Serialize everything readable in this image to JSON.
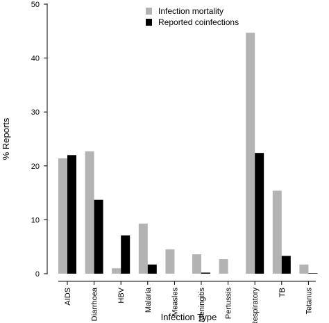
{
  "chart_data": {
    "type": "bar",
    "title": "",
    "xlabel": "Infection Type",
    "ylabel": "% Reports",
    "ylim": [
      0,
      50
    ],
    "yticks": [
      0,
      10,
      20,
      30,
      40,
      50
    ],
    "grid": false,
    "legend_position": "top-center",
    "categories": [
      "AIDS",
      "Diarrhoea",
      "HBV",
      "Malaria",
      "Measles",
      "Meningitis",
      "Pertussis",
      "Respiratory",
      "TB",
      "Tetanus"
    ],
    "series": [
      {
        "name": "Infection mortality",
        "color": "#b3b3b3",
        "values": [
          21.4,
          22.7,
          1.0,
          9.3,
          4.5,
          3.6,
          2.7,
          44.7,
          15.4,
          1.7
        ]
      },
      {
        "name": "Reported coinfections",
        "color": "#000000",
        "values": [
          22.0,
          13.7,
          7.1,
          1.7,
          0.0,
          0.2,
          0.0,
          22.4,
          3.3,
          0.1
        ]
      }
    ]
  }
}
